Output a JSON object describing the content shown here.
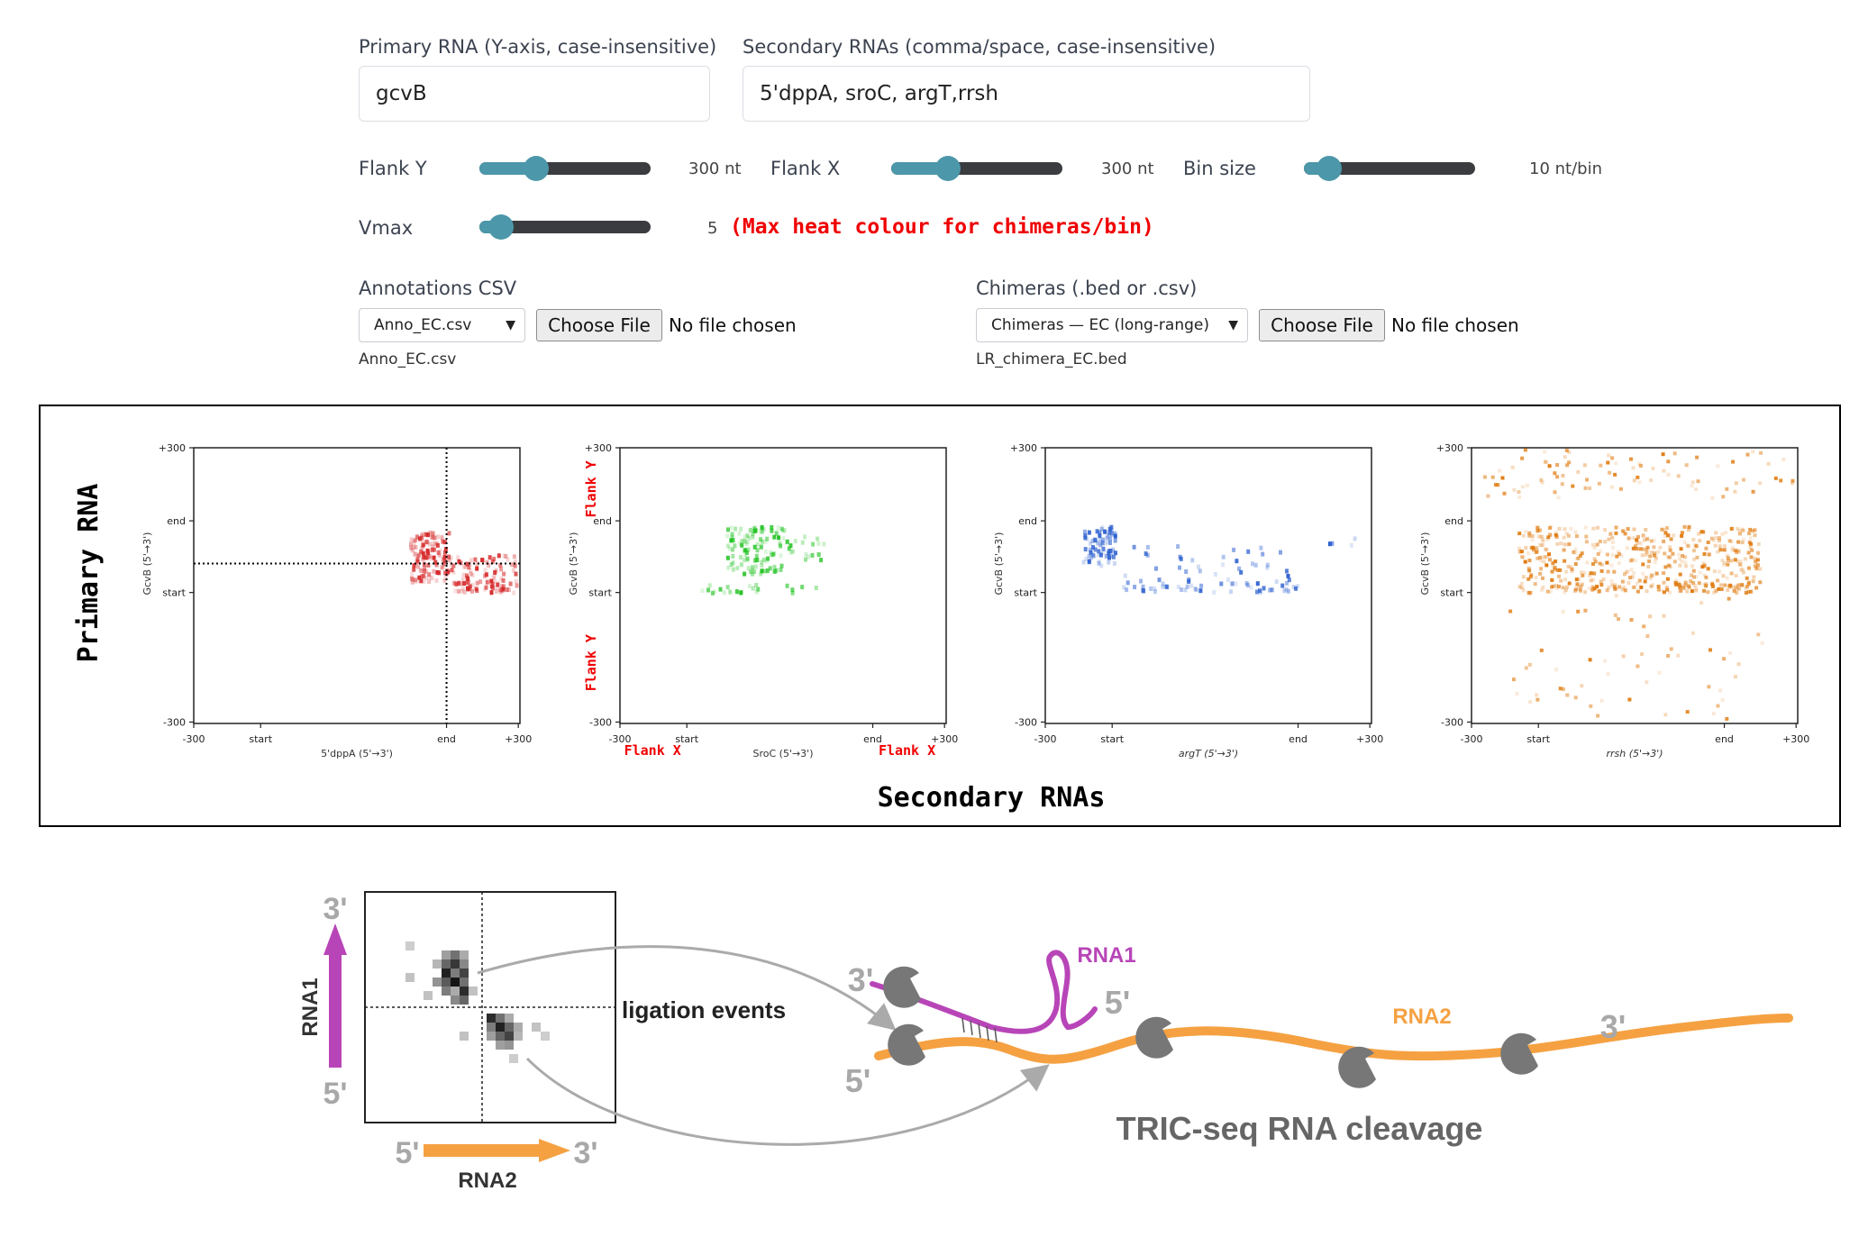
{
  "controls": {
    "primary_label": "Primary RNA (Y-axis, case-insensitive)",
    "primary_value": "gcvB",
    "secondary_label": "Secondary RNAs (comma/space, case-insensitive)",
    "secondary_value": "5'dppA, sroC, argT,rrsh",
    "sliders": [
      {
        "label": "Flank Y",
        "value_text": "300 nt",
        "fraction": 0.33
      },
      {
        "label": "Flank X",
        "value_text": "300 nt",
        "fraction": 0.33
      },
      {
        "label": "Bin size",
        "value_text": "10 nt/bin",
        "fraction": 0.15
      },
      {
        "label": "Vmax",
        "value_text": "5",
        "fraction": 0.13
      }
    ],
    "vmax_note": "(Max heat colour for chimeras/bin)",
    "annotations": {
      "label": "Annotations CSV",
      "select_value": "Anno_EC.csv",
      "choose_label": "Choose File",
      "no_file": "No file chosen",
      "loaded": "Anno_EC.csv"
    },
    "chimeras": {
      "label": "Chimeras (.bed or .csv)",
      "select_value": "Chimeras — EC (long-range)",
      "choose_label": "Choose File",
      "no_file": "No file chosen",
      "loaded": "LR_chimera_EC.bed"
    }
  },
  "plots_panel": {
    "primary_axis_title": "Primary RNA",
    "secondary_axis_title": "Secondary RNAs",
    "flank_y_label": "Flank Y",
    "flank_x_label": "Flank X",
    "plots": [
      {
        "ylabel": "GcvB (5'→3')",
        "xlabel": "5'dppA (5'→3')",
        "color": "#d62728",
        "italic": false
      },
      {
        "ylabel": "GcvB (5'→3')",
        "xlabel": "SroC (5'→3')",
        "color": "#22c322",
        "italic": false
      },
      {
        "ylabel": "GcvB (5'→3')",
        "xlabel": "argT (5'→3')",
        "color": "#2f62d0",
        "italic": true
      },
      {
        "ylabel": "GcvB (5'→3')",
        "xlabel": "rrsh (5'→3')",
        "color": "#e07b10",
        "italic": true
      }
    ],
    "y_ticks": [
      "+300",
      "end",
      "start",
      "-300"
    ],
    "x_ticks": [
      "-300",
      "start",
      "end",
      "+300"
    ]
  },
  "diagram": {
    "rna1_label": "RNA1",
    "rna2_label": "RNA2",
    "prime3": "3'",
    "prime5": "5'",
    "ligation_label": "ligation events",
    "cleavage_title": "TRIC-seq RNA cleavage",
    "colors": {
      "rna1": "#b845b8",
      "rna2": "#f5a142",
      "prime": "#a8a8a8",
      "cutter": "#777777"
    }
  }
}
